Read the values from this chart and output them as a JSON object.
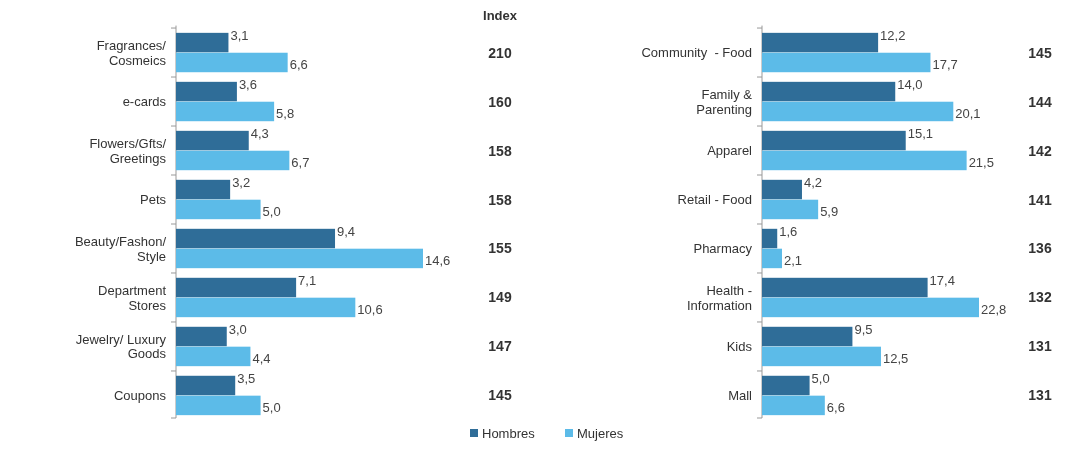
{
  "chart_data": [
    {
      "type": "bar",
      "orientation": "horizontal",
      "legend": "bottom",
      "categories": [
        "Fragrances/\nCosmeics",
        "e-cards",
        "Flowers/Gfts/\nGreetings",
        "Pets",
        "Beauty/Fashon/\nStyle",
        "Department\nStores",
        "Jewelry/ Luxury\nGoods",
        "Coupons"
      ],
      "series": [
        {
          "name": "Hombres",
          "color": "#2f6d98",
          "values": [
            3.1,
            3.6,
            4.3,
            3.2,
            9.4,
            7.1,
            3.0,
            3.5
          ],
          "value_labels": [
            "3,1",
            "3,6",
            "4,3",
            "3,2",
            "9,4",
            "7,1",
            "3,0",
            "3,5"
          ]
        },
        {
          "name": "Mujeres",
          "color": "#5cbbe8",
          "values": [
            6.6,
            5.8,
            6.7,
            5.0,
            14.6,
            10.6,
            4.4,
            5.0
          ],
          "value_labels": [
            "6,6",
            "5,8",
            "6,7",
            "5,0",
            "14,6",
            "10,6",
            "4,4",
            "5,0"
          ]
        }
      ],
      "annotations": [
        "Index",
        "210",
        "160",
        "158",
        "158",
        "155",
        "149",
        "147",
        "145"
      ]
    },
    {
      "type": "bar",
      "orientation": "horizontal",
      "categories": [
        "Community  - Food",
        "Family &\nParenting",
        "Apparel",
        "Retail - Food",
        "Pharmacy",
        "Health -\nInformation",
        "Kids",
        "Mall"
      ],
      "series": [
        {
          "color": "#2f6d98",
          "values": [
            12.2,
            14.0,
            15.1,
            4.2,
            1.6,
            17.4,
            9.5,
            5.0
          ],
          "value_labels": [
            "12,2",
            "14,0",
            "15,1",
            "4,2",
            "1,6",
            "17,4",
            "9,5",
            "5,0"
          ]
        },
        {
          "color": "#5cbbe8",
          "values": [
            17.7,
            20.1,
            21.5,
            5.9,
            2.1,
            22.8,
            12.5,
            6.6
          ],
          "value_labels": [
            "17,7",
            "20,1",
            "21,5",
            "5,9",
            "2,1",
            "22,8",
            "12,5",
            "6,6"
          ]
        }
      ],
      "annotations": [
        "145",
        "144",
        "142",
        "141",
        "136",
        "132",
        "131",
        "131"
      ]
    }
  ]
}
